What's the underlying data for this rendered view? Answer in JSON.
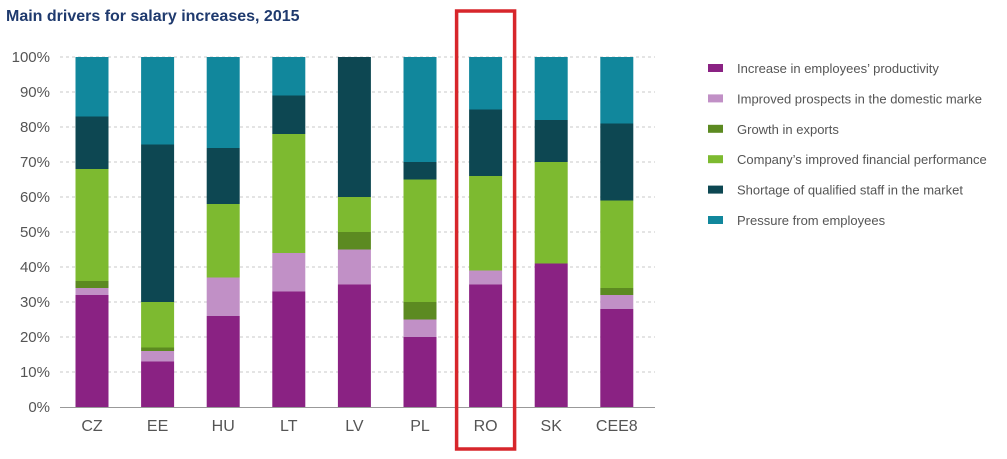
{
  "chart_data": {
    "type": "bar",
    "stacked": true,
    "title": "Main drivers for salary increases, 2015",
    "xlabel": "",
    "ylabel": "",
    "ylim": [
      0,
      100
    ],
    "yticks": [
      "0%",
      "10%",
      "20%",
      "30%",
      "40%",
      "50%",
      "60%",
      "70%",
      "80%",
      "90%",
      "100%"
    ],
    "grid": "horizontal dashed",
    "legend_position": "right",
    "highlight": {
      "category": "RO",
      "color": "#d7262b"
    },
    "categories": [
      "CZ",
      "EE",
      "HU",
      "LT",
      "LV",
      "PL",
      "RO",
      "SK",
      "CEE8"
    ],
    "series": [
      {
        "name": "Increase in employees’ productivity",
        "color": "#8a2283",
        "values": [
          32,
          13,
          26,
          33,
          35,
          20,
          35,
          41,
          28
        ]
      },
      {
        "name": "Improved prospects in the domestic marke",
        "color": "#c190c6",
        "values": [
          2,
          3,
          11,
          11,
          10,
          5,
          4,
          0,
          4
        ]
      },
      {
        "name": "Growth in exports",
        "color": "#5c8a21",
        "values": [
          2,
          1,
          0,
          0,
          5,
          5,
          0,
          0,
          2
        ]
      },
      {
        "name": "Company’s improved financial performance",
        "color": "#7dba30",
        "values": [
          32,
          13,
          21,
          34,
          10,
          35,
          27,
          29,
          25
        ]
      },
      {
        "name": "Shortage of qualified staff in the market",
        "color": "#0d4752",
        "values": [
          15,
          45,
          16,
          11,
          40,
          5,
          19,
          12,
          22
        ]
      },
      {
        "name": "Pressure from employees",
        "color": "#11879c",
        "values": [
          17,
          25,
          26,
          11,
          0,
          30,
          15,
          18,
          19
        ]
      }
    ]
  }
}
